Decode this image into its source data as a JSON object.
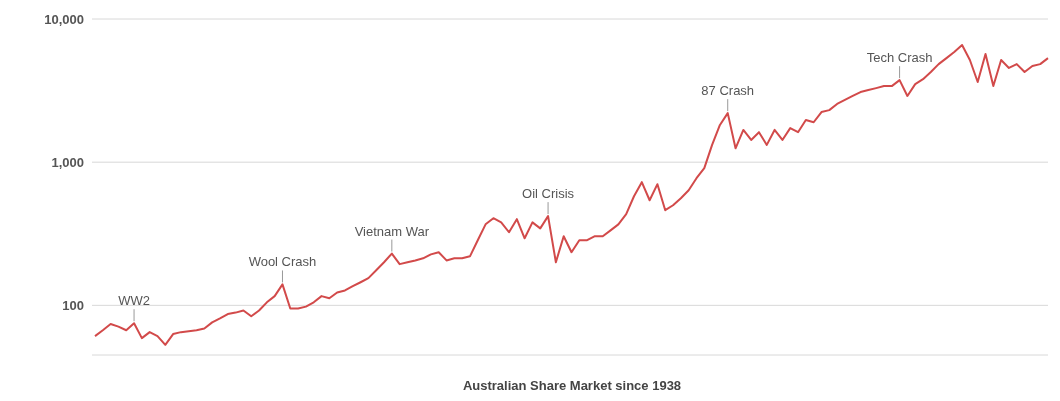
{
  "chart_data": {
    "type": "line",
    "title": "Australian Share Market since 1938",
    "categories": [
      null,
      null,
      null,
      null,
      null,
      null,
      null,
      null,
      null,
      null,
      null,
      null,
      null,
      null,
      null,
      null,
      null,
      null,
      null,
      null,
      null,
      null,
      null,
      null,
      null,
      null,
      null,
      null,
      null,
      null,
      null,
      null,
      null,
      null,
      null,
      null,
      null,
      null,
      null,
      null,
      null,
      null,
      null,
      null,
      null,
      null,
      null,
      null,
      null,
      null,
      null,
      null,
      null,
      null,
      null,
      null,
      null,
      null,
      null,
      null,
      null,
      null,
      null,
      null,
      null,
      null,
      null,
      null,
      null,
      null,
      null,
      null,
      null,
      null,
      null,
      null,
      null,
      null,
      null,
      null,
      null,
      null,
      null,
      null,
      null,
      null,
      null,
      null,
      null,
      null,
      null,
      null,
      null,
      null,
      null,
      null,
      null,
      null,
      null,
      null,
      null,
      null,
      null,
      null,
      null,
      null,
      null,
      null,
      null,
      null,
      null,
      null,
      null,
      null,
      null,
      null,
      null,
      null,
      null,
      null,
      null,
      null,
      null
    ],
    "series": [
      {
        "color": "#d24a4a",
        "values": [
          61,
          67,
          74,
          71,
          67,
          75,
          59,
          65,
          61,
          53,
          63,
          65,
          66,
          67,
          69,
          76,
          81,
          87,
          89,
          92,
          84,
          92,
          105,
          116,
          140,
          95,
          95,
          98,
          105,
          116,
          112,
          123,
          127,
          136,
          145,
          155,
          176,
          200,
          230,
          194,
          200,
          206,
          213,
          227,
          235,
          206,
          213,
          213,
          220,
          285,
          368,
          406,
          380,
          324,
          400,
          294,
          380,
          345,
          420,
          200,
          304,
          235,
          285,
          285,
          304,
          304,
          334,
          368,
          433,
          578,
          725,
          542,
          702,
          462,
          500,
          560,
          637,
          773,
          908,
          1320,
          1820,
          2200,
          1250,
          1680,
          1430,
          1620,
          1320,
          1680,
          1430,
          1730,
          1620,
          1970,
          1900,
          2240,
          2310,
          2550,
          2720,
          2900,
          3090,
          3190,
          3290,
          3400,
          3400,
          3740,
          2900,
          3510,
          3800,
          4260,
          4840,
          5330,
          5880,
          6580,
          5170,
          3630,
          5690,
          3400,
          5170,
          4550,
          4840,
          4260,
          4690,
          4840,
          5330
        ]
      }
    ],
    "log": "y",
    "ylim": [
      45,
      10000
    ],
    "yticks": [
      100,
      {
        "value": 1000,
        "label": "1,000"
      },
      {
        "value": 10000,
        "label": "10,000"
      }
    ],
    "grid": "y",
    "legend": false,
    "marker": "none",
    "line_style": "solid",
    "tick_labels": "y",
    "annotations": [
      {
        "text": "WW2",
        "y": 75
      },
      {
        "text": "Wool Crash",
        "y": 140
      },
      {
        "text": "Vietnam War",
        "y": 230
      },
      {
        "text": "Oil Crisis",
        "y": 420
      },
      {
        "text": "87 Crash",
        "y": 2200
      },
      {
        "text": "Tech Crash",
        "y": 3740
      }
    ]
  }
}
